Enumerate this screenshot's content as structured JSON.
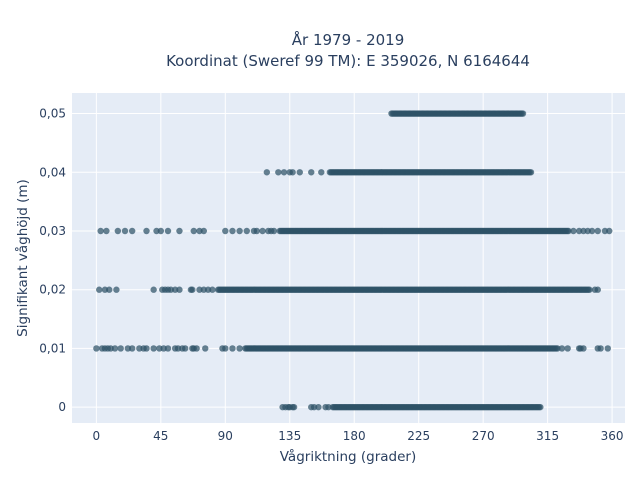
{
  "chart_data": {
    "type": "scatter",
    "title_line1": "År 1979 - 2019",
    "title_line2": "Koordinat (Sweref 99 TM): E 359026, N 6164644",
    "xlabel": "Vågriktning (grader)",
    "ylabel": "Signifikant våghöjd (m)",
    "xlim": [
      -17,
      369
    ],
    "ylim": [
      -0.0027,
      0.0535
    ],
    "x_ticks": [
      0,
      45,
      90,
      135,
      180,
      225,
      270,
      315,
      360
    ],
    "x_tick_labels": [
      "0",
      "45",
      "90",
      "135",
      "180",
      "225",
      "270",
      "315",
      "360"
    ],
    "y_ticks": [
      0,
      0.01,
      0.02,
      0.03,
      0.04,
      0.05
    ],
    "y_tick_labels": [
      "0",
      "0,01",
      "0,02",
      "0,03",
      "0,04",
      "0,05"
    ],
    "grid": true,
    "marker_color": "#2e5266",
    "plot_bgcolor": "#e5ecf6",
    "series": [
      {
        "y": 0.05,
        "dense_ranges": [
          [
            206,
            298
          ]
        ],
        "sparse_x": []
      },
      {
        "y": 0.04,
        "dense_ranges": [
          [
            163,
            304
          ]
        ],
        "sparse_x": [
          119,
          127,
          131,
          135,
          137,
          142,
          150,
          157
        ]
      },
      {
        "y": 0.03,
        "dense_ranges": [
          [
            128,
            330
          ]
        ],
        "sparse_x": [
          3,
          7,
          15,
          20,
          25,
          35,
          42,
          45,
          50,
          58,
          68,
          72,
          75,
          90,
          95,
          100,
          105,
          110,
          112,
          116,
          120,
          122,
          124,
          333,
          337,
          340,
          343,
          346,
          350,
          355,
          358
        ]
      },
      {
        "y": 0.02,
        "dense_ranges": [
          [
            85,
            345
          ]
        ],
        "sparse_x": [
          2,
          6,
          9,
          14,
          40,
          46,
          48,
          50,
          52,
          55,
          58,
          66,
          67,
          72,
          75,
          78,
          81,
          348,
          350
        ]
      },
      {
        "y": 0.01,
        "dense_ranges": [
          [
            104,
            322
          ]
        ],
        "sparse_x": [
          0,
          4,
          6,
          8,
          10,
          13,
          17,
          22,
          25,
          30,
          33,
          35,
          40,
          44,
          47,
          50,
          55,
          57,
          60,
          62,
          67,
          68,
          70,
          76,
          88,
          90,
          95,
          100,
          325,
          329,
          337,
          338,
          340,
          350,
          352,
          357
        ]
      },
      {
        "y": 0,
        "dense_ranges": [
          [
            165,
            310
          ]
        ],
        "sparse_x": [
          130,
          132,
          134,
          135,
          137,
          138,
          150,
          152,
          155,
          160,
          162
        ]
      }
    ]
  }
}
